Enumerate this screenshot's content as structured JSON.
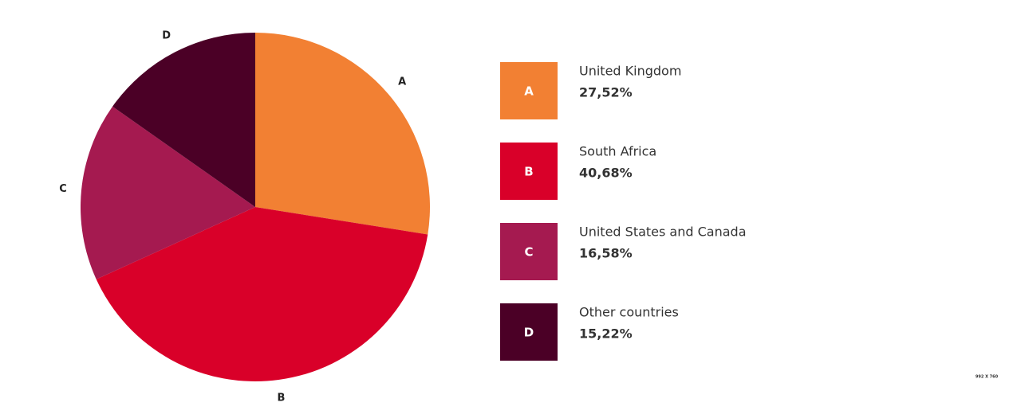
{
  "chart_data": {
    "type": "pie",
    "labels": [
      "A",
      "B",
      "C",
      "D"
    ],
    "categories": [
      "United Kingdom",
      "South Africa",
      "United States and Canada",
      "Other countries"
    ],
    "values": [
      27.52,
      40.68,
      16.58,
      15.22
    ],
    "value_labels": [
      "27,52%",
      "40,68%",
      "16,58%",
      "15,22%"
    ],
    "colors": [
      "#f28033",
      "#d90029",
      "#a51a50",
      "#4b0026"
    ]
  },
  "corner_text": "992 X 760"
}
